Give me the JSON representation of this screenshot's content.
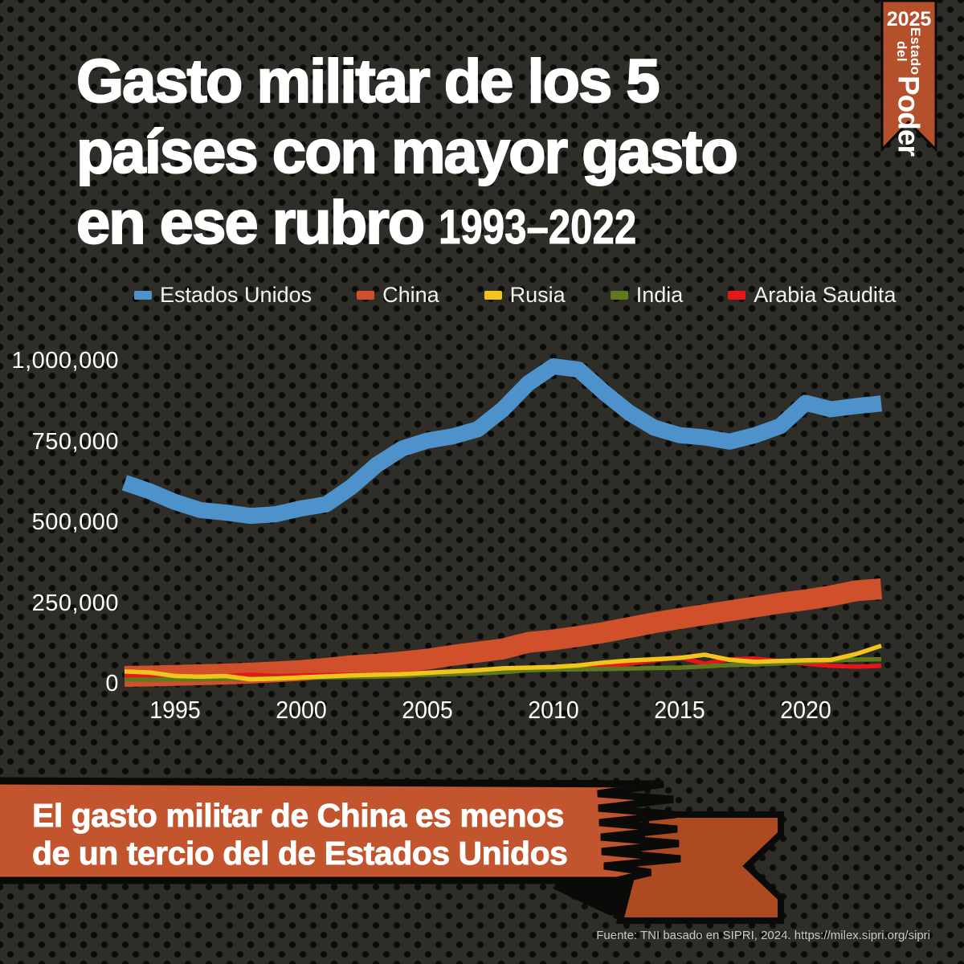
{
  "title": {
    "line1": "Gasto militar de los 5",
    "line2": "países con mayor gasto",
    "line3": "en ese rubro",
    "period": "1993–2022"
  },
  "corner_ribbon": {
    "year": "2025",
    "title_small": "Estado del",
    "title_big": "Poder"
  },
  "banner": {
    "line1": "El gasto militar de China es menos",
    "line2": "de un tercio del de Estados Unidos"
  },
  "source": "Fuente: TNI basado en SIPRI, 2024. https://milex.sipri.org/sipri",
  "colors": {
    "background": "#2e2d27",
    "dot": "#0b0b09",
    "ink": "#0a0a08",
    "white": "#ffffff",
    "banner_orange": "#c2552e",
    "tail_orange": "#ae4a22",
    "corner_ribbon_orange": "#b5502c",
    "us_blue": "#4e92cc",
    "china_orange": "#d0502b",
    "russia_yellow": "#f2c51d",
    "india_green": "#5f7a1e",
    "saudi_red": "#e8151b"
  },
  "chart_data": {
    "type": "line",
    "title": "Gasto militar de los 5 países con mayor gasto en ese rubro 1993–2022",
    "xlabel": "",
    "ylabel": "",
    "grid": false,
    "legend_position": "top",
    "ylim": [
      0,
      1050000
    ],
    "x": [
      1993,
      1994,
      1995,
      1996,
      1997,
      1998,
      1999,
      2000,
      2001,
      2002,
      2003,
      2004,
      2005,
      2006,
      2007,
      2008,
      2009,
      2010,
      2011,
      2012,
      2013,
      2014,
      2015,
      2016,
      2017,
      2018,
      2019,
      2020,
      2021,
      2022,
      2023
    ],
    "x_ticks": [
      {
        "v": 1995,
        "label": "1995"
      },
      {
        "v": 2000,
        "label": "2000"
      },
      {
        "v": 2005,
        "label": "2005"
      },
      {
        "v": 2010,
        "label": "2010"
      },
      {
        "v": 2015,
        "label": "2015"
      },
      {
        "v": 2020,
        "label": "2020"
      }
    ],
    "y_ticks": [
      {
        "v": 0,
        "label": "0"
      },
      {
        "v": 250000,
        "label": "250,000"
      },
      {
        "v": 500000,
        "label": "500,000"
      },
      {
        "v": 750000,
        "label": "750,000"
      },
      {
        "v": 1000000,
        "label": "1,000,000"
      }
    ],
    "series": [
      {
        "name": "Estados Unidos",
        "color": "#4e92cc",
        "values": [
          625000,
          598000,
          565000,
          540000,
          532000,
          522000,
          527000,
          545000,
          558000,
          612000,
          680000,
          730000,
          755000,
          768000,
          790000,
          852000,
          932000,
          985000,
          975000,
          905000,
          842000,
          795000,
          772000,
          765000,
          752000,
          772000,
          800000,
          872000,
          852000,
          862000,
          870000
        ]
      },
      {
        "name": "China",
        "color": "#d0502b",
        "values": [
          25000,
          26000,
          28000,
          30000,
          32000,
          35000,
          39000,
          43000,
          50000,
          58000,
          63000,
          70000,
          78000,
          90000,
          100000,
          110000,
          130000,
          138000,
          149000,
          161000,
          176000,
          191000,
          204000,
          216000,
          228000,
          240000,
          252000,
          262000,
          274000,
          290000,
          296000
        ]
      },
      {
        "name": "Rusia",
        "color": "#f2c51d",
        "values": [
          40000,
          37000,
          26000,
          24000,
          26000,
          16000,
          18000,
          22000,
          25000,
          28000,
          30000,
          32000,
          36000,
          40000,
          44000,
          50000,
          52000,
          54000,
          59000,
          68000,
          74000,
          78000,
          82000,
          92000,
          76000,
          70000,
          73000,
          75000,
          76000,
          94000,
          120000
        ]
      },
      {
        "name": "India",
        "color": "#5f7a1e",
        "values": [
          15000,
          15000,
          16000,
          16000,
          17000,
          18000,
          20000,
          21000,
          22000,
          23000,
          24000,
          26000,
          30000,
          32000,
          34000,
          38000,
          44000,
          46000,
          47000,
          48000,
          49000,
          51000,
          52000,
          56000,
          60000,
          62000,
          65000,
          70000,
          74000,
          77000,
          78000
        ]
      },
      {
        "name": "Arabia Saudita",
        "color": "#e8151b",
        "values": [
          28000,
          22000,
          20000,
          20000,
          26000,
          30000,
          26000,
          28000,
          29000,
          30000,
          31000,
          33000,
          37000,
          40000,
          44000,
          46000,
          48000,
          50000,
          52000,
          56000,
          64000,
          74000,
          84000,
          64000,
          78000,
          80000,
          72000,
          64000,
          58000,
          55000,
          58000
        ]
      }
    ]
  }
}
